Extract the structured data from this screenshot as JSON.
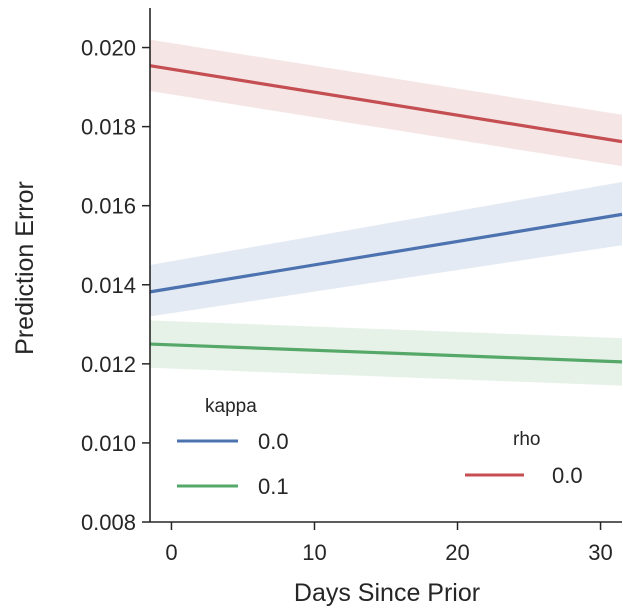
{
  "chart_data": {
    "type": "line",
    "xlabel": "Days Since Prior",
    "ylabel": "Prediction Error",
    "xlim": [
      -1.5,
      31.5
    ],
    "ylim": [
      0.008,
      0.021
    ],
    "xticks": [
      0,
      10,
      20,
      30
    ],
    "xtick_labels": [
      "0",
      "10",
      "20",
      "30"
    ],
    "yticks": [
      0.008,
      0.01,
      0.012,
      0.014,
      0.016,
      0.018,
      0.02
    ],
    "ytick_labels": [
      "0.008",
      "0.010",
      "0.012",
      "0.014",
      "0.016",
      "0.018",
      "0.020"
    ],
    "grid": false,
    "series": [
      {
        "name": "0.0",
        "group": "kappa",
        "color": "#4c72b0",
        "x": [
          -1.5,
          31.5
        ],
        "y": [
          0.01382,
          0.01578
        ],
        "band_lower": [
          0.0132,
          0.015
        ],
        "band_upper": [
          0.0145,
          0.0166
        ]
      },
      {
        "name": "0.1",
        "group": "kappa",
        "color": "#55a868",
        "x": [
          -1.5,
          31.5
        ],
        "y": [
          0.0125,
          0.01205
        ],
        "band_lower": [
          0.0119,
          0.01145
        ],
        "band_upper": [
          0.0131,
          0.01265
        ]
      },
      {
        "name": "0.0",
        "group": "rho",
        "color": "#c44e52",
        "x": [
          -1.5,
          31.5
        ],
        "y": [
          0.01954,
          0.01762
        ],
        "band_lower": [
          0.0189,
          0.017
        ],
        "band_upper": [
          0.0202,
          0.0183
        ]
      }
    ],
    "legends": [
      {
        "title": "kappa",
        "position": "lower-left",
        "entries": [
          {
            "label": "0.0",
            "color": "#4c72b0"
          },
          {
            "label": "0.1",
            "color": "#55a868"
          }
        ]
      },
      {
        "title": "rho",
        "position": "lower-right",
        "entries": [
          {
            "label": "0.0",
            "color": "#c44e52"
          }
        ]
      }
    ]
  }
}
